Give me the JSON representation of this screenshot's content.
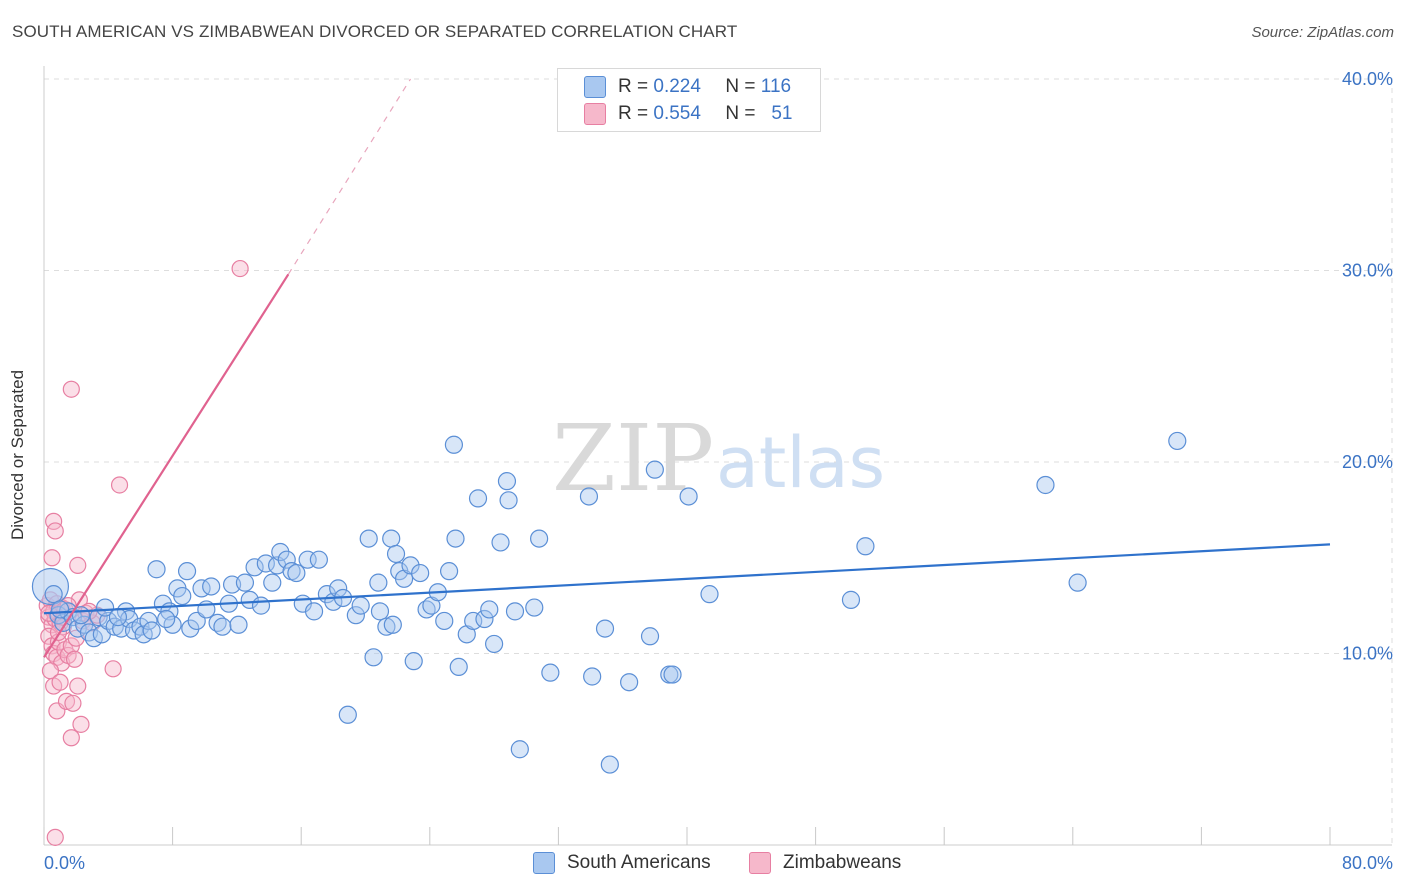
{
  "title": "SOUTH AMERICAN VS ZIMBABWEAN DIVORCED OR SEPARATED CORRELATION CHART",
  "source": "Source: ZipAtlas.com",
  "watermark": {
    "zip": "ZIP",
    "atlas": "atlas"
  },
  "legend": {
    "row1": {
      "r_label": "R =",
      "r_value": "0.224",
      "n_label": "N =",
      "n_value": "116"
    },
    "row2": {
      "r_label": "R =",
      "r_value": "0.554",
      "n_label": "N =",
      "n_value": "51"
    }
  },
  "colors": {
    "blue_fill": "#a9c8f0",
    "blue_stroke": "#5b8fd6",
    "blue_line": "#2f72cc",
    "pink_fill": "#f6b8cb",
    "pink_stroke": "#e77fa2",
    "pink_line": "#e0628f",
    "grid": "#dddddd",
    "tick_text": "#3b73c4"
  },
  "chart_data": {
    "type": "scatter",
    "title": "SOUTH AMERICAN VS ZIMBABWEAN DIVORCED OR SEPARATED CORRELATION CHART",
    "xlabel": "",
    "ylabel": "Divorced or Separated",
    "xlim": [
      0,
      80
    ],
    "ylim": [
      0,
      40
    ],
    "x_ticks": [
      "0.0%",
      "80.0%"
    ],
    "y_ticks": [
      {
        "value": 10,
        "label": "10.0%"
      },
      {
        "value": 20,
        "label": "20.0%"
      },
      {
        "value": 30,
        "label": "30.0%"
      },
      {
        "value": 40,
        "label": "40.0%"
      }
    ],
    "grid": true,
    "legend_position": "top-center",
    "series": [
      {
        "name": "South Americans",
        "color": "#a9c8f0",
        "r": 0.224,
        "n": 116,
        "trend": {
          "x": [
            0,
            80
          ],
          "y": [
            12.1,
            15.7
          ]
        },
        "points": [
          [
            0.6,
            13.1
          ],
          [
            0.9,
            12.0
          ],
          [
            1.2,
            11.6
          ],
          [
            1.5,
            12.2
          ],
          [
            1.8,
            11.9
          ],
          [
            2.1,
            11.3
          ],
          [
            2.5,
            11.5
          ],
          [
            2.8,
            11.1
          ],
          [
            3.1,
            10.8
          ],
          [
            3.4,
            11.9
          ],
          [
            3.6,
            11.0
          ],
          [
            4.0,
            11.7
          ],
          [
            4.4,
            11.4
          ],
          [
            4.8,
            11.3
          ],
          [
            5.1,
            12.2
          ],
          [
            5.3,
            11.8
          ],
          [
            5.6,
            11.2
          ],
          [
            6.0,
            11.4
          ],
          [
            6.2,
            11.0
          ],
          [
            6.5,
            11.7
          ],
          [
            6.7,
            11.2
          ],
          [
            7.0,
            14.4
          ],
          [
            7.4,
            12.6
          ],
          [
            7.8,
            12.2
          ],
          [
            8.0,
            11.5
          ],
          [
            8.3,
            13.4
          ],
          [
            8.6,
            13.0
          ],
          [
            8.9,
            14.3
          ],
          [
            9.1,
            11.3
          ],
          [
            9.5,
            11.7
          ],
          [
            9.8,
            13.4
          ],
          [
            10.1,
            12.3
          ],
          [
            10.4,
            13.5
          ],
          [
            10.8,
            11.6
          ],
          [
            11.1,
            11.4
          ],
          [
            11.5,
            12.6
          ],
          [
            11.7,
            13.6
          ],
          [
            12.1,
            11.5
          ],
          [
            12.5,
            13.7
          ],
          [
            12.8,
            12.8
          ],
          [
            13.1,
            14.5
          ],
          [
            13.5,
            12.5
          ],
          [
            13.8,
            14.7
          ],
          [
            14.2,
            13.7
          ],
          [
            14.5,
            14.6
          ],
          [
            14.7,
            15.3
          ],
          [
            15.1,
            14.9
          ],
          [
            15.4,
            14.3
          ],
          [
            15.7,
            14.2
          ],
          [
            16.1,
            12.6
          ],
          [
            16.4,
            14.9
          ],
          [
            16.8,
            12.2
          ],
          [
            17.1,
            14.9
          ],
          [
            17.6,
            13.1
          ],
          [
            18.0,
            12.7
          ],
          [
            18.3,
            13.4
          ],
          [
            18.6,
            12.9
          ],
          [
            18.9,
            6.8
          ],
          [
            19.4,
            12.0
          ],
          [
            19.7,
            12.5
          ],
          [
            20.2,
            16.0
          ],
          [
            20.5,
            9.8
          ],
          [
            20.8,
            13.7
          ],
          [
            20.9,
            12.2
          ],
          [
            21.3,
            11.4
          ],
          [
            21.7,
            11.5
          ],
          [
            21.6,
            16.0
          ],
          [
            21.9,
            15.2
          ],
          [
            22.1,
            14.3
          ],
          [
            22.4,
            13.9
          ],
          [
            22.8,
            14.6
          ],
          [
            23.0,
            9.6
          ],
          [
            23.4,
            14.2
          ],
          [
            23.8,
            12.3
          ],
          [
            24.1,
            12.5
          ],
          [
            24.5,
            13.2
          ],
          [
            24.9,
            11.7
          ],
          [
            25.2,
            14.3
          ],
          [
            25.5,
            20.9
          ],
          [
            25.6,
            16.0
          ],
          [
            25.8,
            9.3
          ],
          [
            26.3,
            11.0
          ],
          [
            26.7,
            11.7
          ],
          [
            27.0,
            18.1
          ],
          [
            27.4,
            11.8
          ],
          [
            27.7,
            12.3
          ],
          [
            28.0,
            10.5
          ],
          [
            28.4,
            15.8
          ],
          [
            28.8,
            19.0
          ],
          [
            28.9,
            18.0
          ],
          [
            29.3,
            12.2
          ],
          [
            29.6,
            5.0
          ],
          [
            30.5,
            12.4
          ],
          [
            30.8,
            16.0
          ],
          [
            31.5,
            9.0
          ],
          [
            33.9,
            18.2
          ],
          [
            34.1,
            8.8
          ],
          [
            34.9,
            11.3
          ],
          [
            36.4,
            8.5
          ],
          [
            37.7,
            10.9
          ],
          [
            38.0,
            19.6
          ],
          [
            38.9,
            8.9
          ],
          [
            39.1,
            8.9
          ],
          [
            40.1,
            18.2
          ],
          [
            35.2,
            4.2
          ],
          [
            41.4,
            13.1
          ],
          [
            50.2,
            12.8
          ],
          [
            51.1,
            15.6
          ],
          [
            62.3,
            18.8
          ],
          [
            64.3,
            13.7
          ],
          [
            70.5,
            21.1
          ],
          [
            1.0,
            12.3
          ],
          [
            2.3,
            12.0
          ],
          [
            3.8,
            12.4
          ],
          [
            4.6,
            11.9
          ],
          [
            7.6,
            11.8
          ]
        ],
        "large_point": [
          0.4,
          13.5
        ]
      },
      {
        "name": "Zimbabweans",
        "color": "#f6b8cb",
        "r": 0.554,
        "n": 51,
        "trend": {
          "x": [
            0,
            15.2
          ],
          "y": [
            9.8,
            29.8
          ],
          "dashed_to": {
            "x": 22.8,
            "y": 40.0
          }
        },
        "points": [
          [
            0.2,
            12.5
          ],
          [
            0.3,
            11.9
          ],
          [
            0.4,
            12.8
          ],
          [
            0.5,
            11.5
          ],
          [
            0.6,
            12.2
          ],
          [
            0.7,
            11.8
          ],
          [
            0.8,
            12.6
          ],
          [
            0.9,
            12.1
          ],
          [
            1.0,
            11.6
          ],
          [
            1.1,
            12.4
          ],
          [
            1.2,
            11.9
          ],
          [
            1.3,
            12.3
          ],
          [
            0.3,
            10.9
          ],
          [
            0.5,
            10.4
          ],
          [
            0.6,
            10.0
          ],
          [
            0.8,
            9.8
          ],
          [
            0.9,
            10.6
          ],
          [
            1.1,
            9.5
          ],
          [
            1.3,
            10.2
          ],
          [
            1.5,
            9.9
          ],
          [
            1.7,
            10.4
          ],
          [
            1.9,
            9.7
          ],
          [
            2.0,
            10.8
          ],
          [
            0.4,
            9.1
          ],
          [
            0.6,
            8.3
          ],
          [
            0.8,
            7.0
          ],
          [
            1.0,
            8.5
          ],
          [
            1.4,
            7.5
          ],
          [
            1.8,
            7.4
          ],
          [
            2.1,
            8.3
          ],
          [
            1.7,
            5.6
          ],
          [
            2.3,
            6.3
          ],
          [
            0.5,
            15.0
          ],
          [
            0.6,
            16.9
          ],
          [
            0.7,
            16.4
          ],
          [
            2.1,
            14.6
          ],
          [
            2.2,
            12.8
          ],
          [
            2.4,
            11.7
          ],
          [
            2.6,
            12.1
          ],
          [
            3.0,
            11.6
          ],
          [
            3.3,
            12.0
          ],
          [
            4.3,
            9.2
          ],
          [
            4.7,
            18.8
          ],
          [
            1.7,
            23.8
          ],
          [
            12.2,
            30.1
          ],
          [
            0.7,
            0.4
          ],
          [
            0.3,
            12.1
          ],
          [
            1.5,
            12.5
          ],
          [
            2.8,
            12.2
          ],
          [
            1.2,
            11.4
          ],
          [
            0.9,
            11.1
          ]
        ]
      }
    ]
  },
  "bottom_legend": {
    "series1": "South Americans",
    "series2": "Zimbabweans"
  }
}
